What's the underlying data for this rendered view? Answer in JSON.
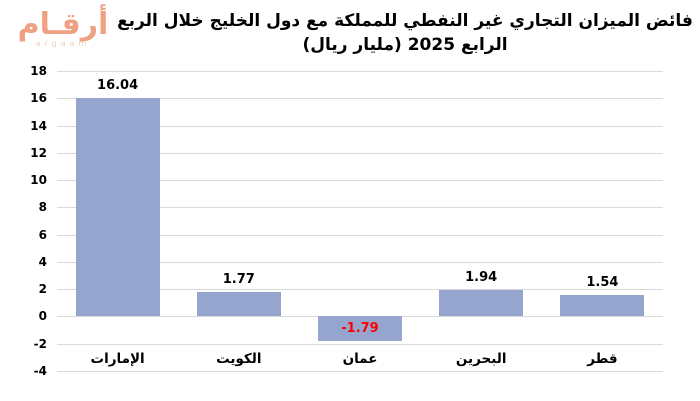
{
  "logo": {
    "arabic": "أرقـام",
    "latin": "argaam",
    "color": "#EFA183",
    "latin_color": "#F2BDA4"
  },
  "title": {
    "line1": "فائض الميزان التجاري غير النفطي للمملكة مع دول الخليج خلال الربع",
    "line2": "الرابع 2025 (مليار ريال)"
  },
  "chart_data": {
    "type": "bar",
    "title": "فائض الميزان التجاري غير النفطي للمملكة مع دول الخليج خلال الربع الرابع 2025 (مليار ريال)",
    "categories": [
      "الإمارات",
      "الكويت",
      "عمان",
      "البحرين",
      "قطر"
    ],
    "values": [
      16.04,
      1.77,
      -1.79,
      1.94,
      1.54
    ],
    "value_labels": [
      "16.04",
      "1.77",
      "-1.79",
      "1.94",
      "1.54"
    ],
    "xlabel": "",
    "ylabel": "",
    "ylim": [
      -4,
      18
    ],
    "yticks": [
      18,
      16,
      14,
      12,
      10,
      8,
      6,
      4,
      2,
      0,
      -2,
      -4
    ],
    "grid": true,
    "legend": false,
    "colors": {
      "bar": "#95A5CE",
      "grid": "#D9D9D9",
      "value_label": "#000000",
      "negative_value_label": "#FF0000",
      "tick_label": "#000000"
    }
  }
}
